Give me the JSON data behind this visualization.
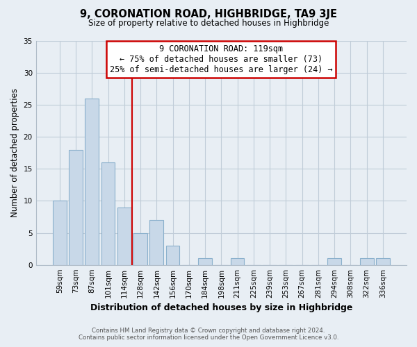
{
  "title": "9, CORONATION ROAD, HIGHBRIDGE, TA9 3JE",
  "subtitle": "Size of property relative to detached houses in Highbridge",
  "xlabel": "Distribution of detached houses by size in Highbridge",
  "ylabel": "Number of detached properties",
  "categories": [
    "59sqm",
    "73sqm",
    "87sqm",
    "101sqm",
    "114sqm",
    "128sqm",
    "142sqm",
    "156sqm",
    "170sqm",
    "184sqm",
    "198sqm",
    "211sqm",
    "225sqm",
    "239sqm",
    "253sqm",
    "267sqm",
    "281sqm",
    "294sqm",
    "308sqm",
    "322sqm",
    "336sqm"
  ],
  "values": [
    10,
    18,
    26,
    16,
    9,
    5,
    7,
    3,
    0,
    1,
    0,
    1,
    0,
    0,
    0,
    0,
    0,
    1,
    0,
    1,
    1
  ],
  "bar_color": "#c8d8e8",
  "bar_edgecolor": "#8ab0cc",
  "vline_x": 4.5,
  "vline_color": "#cc0000",
  "annotation_title": "9 CORONATION ROAD: 119sqm",
  "annotation_line1": "← 75% of detached houses are smaller (73)",
  "annotation_line2": "25% of semi-detached houses are larger (24) →",
  "annotation_box_edgecolor": "#cc0000",
  "annotation_box_facecolor": "#ffffff",
  "ylim": [
    0,
    35
  ],
  "yticks": [
    0,
    5,
    10,
    15,
    20,
    25,
    30,
    35
  ],
  "footer_line1": "Contains HM Land Registry data © Crown copyright and database right 2024.",
  "footer_line2": "Contains public sector information licensed under the Open Government Licence v3.0.",
  "background_color": "#e8eef4",
  "plot_background_color": "#e8eef4",
  "grid_color": "#c0ccd8"
}
